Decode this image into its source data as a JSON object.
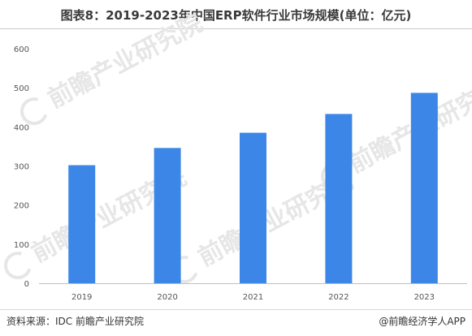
{
  "title": "图表8：2019-2023年中国ERP软件行业市场规模(单位：亿元)",
  "watermark_text": "前瞻产业研究院",
  "footer": {
    "source": "资料来源：IDC 前瞻产业研究院",
    "credit": "@前瞻经济学人APP"
  },
  "colors": {
    "bar": "#3b86e6",
    "axis": "#bfbfbf",
    "text": "#555555"
  },
  "chart_data": {
    "type": "bar",
    "categories": [
      "2019",
      "2020",
      "2021",
      "2022",
      "2023"
    ],
    "series": [
      {
        "values": [
          302,
          346,
          385,
          433,
          487
        ]
      }
    ],
    "title": "图表8：2019-2023年中国ERP软件行业市场规模(单位：亿元)",
    "xlabel": "",
    "ylabel": "",
    "ylim": [
      0,
      600
    ],
    "yticks": [
      "0",
      "100",
      "200",
      "300",
      "400",
      "500",
      "600"
    ],
    "grid": false,
    "legend": "none"
  }
}
